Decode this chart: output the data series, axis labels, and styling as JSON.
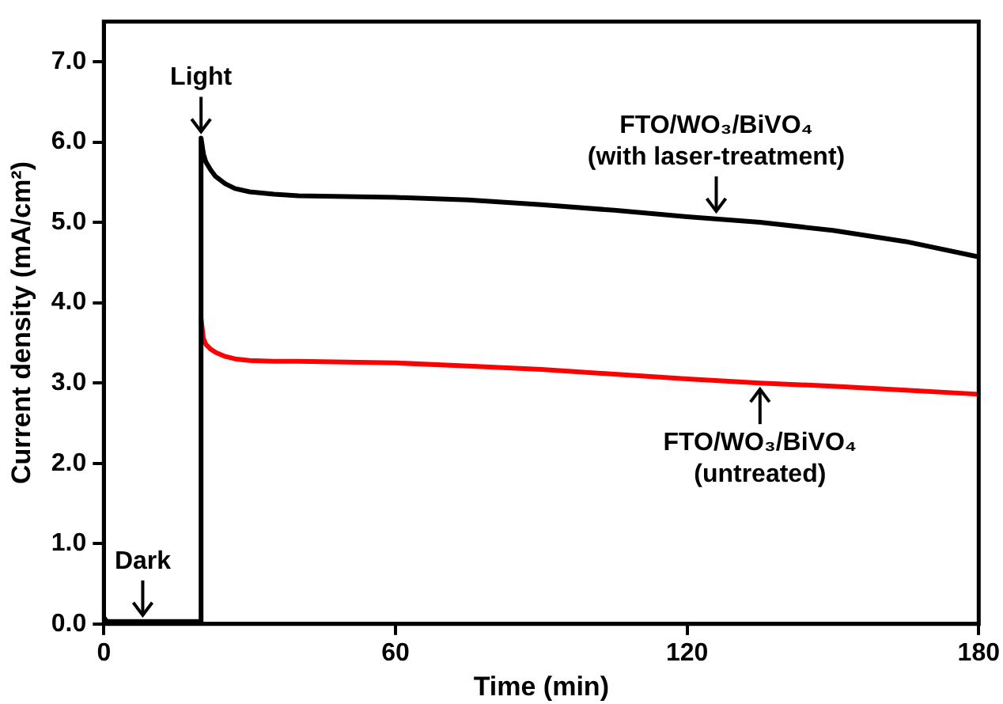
{
  "chart_data": {
    "type": "line",
    "xlabel": "Time (min)",
    "ylabel": "Current density (mA/cm²)",
    "xlim": [
      0,
      180
    ],
    "ylim": [
      0,
      7.5
    ],
    "xticks": [
      0,
      60,
      120,
      180
    ],
    "yticks": [
      {
        "value": 0,
        "label": "0.0"
      },
      {
        "value": 1,
        "label": "1.0"
      },
      {
        "value": 2,
        "label": "2.0"
      },
      {
        "value": 3,
        "label": "3.0"
      },
      {
        "value": 4,
        "label": "4.0"
      },
      {
        "value": 5,
        "label": "5.0"
      },
      {
        "value": 6,
        "label": "6.0"
      },
      {
        "value": 7,
        "label": "7.0"
      }
    ],
    "grid": false,
    "legend": false,
    "marker": "none",
    "line_style": "solid",
    "series": [
      {
        "color": "#000000",
        "x": [
          0,
          0.5,
          1,
          5,
          10,
          15,
          20,
          20,
          20.5,
          21,
          22,
          23,
          25,
          27,
          30,
          35,
          40,
          50,
          60,
          75,
          90,
          105,
          120,
          135,
          150,
          165,
          180
        ],
        "values": [
          0.08,
          0.04,
          0.03,
          0.03,
          0.03,
          0.03,
          0.03,
          6.05,
          5.85,
          5.75,
          5.65,
          5.57,
          5.48,
          5.42,
          5.38,
          5.35,
          5.33,
          5.32,
          5.31,
          5.28,
          5.22,
          5.15,
          5.07,
          5.0,
          4.9,
          4.76,
          4.57
        ]
      },
      {
        "color": "#ff0000",
        "x": [
          20,
          20.5,
          21,
          22,
          23,
          25,
          27,
          30,
          35,
          40,
          50,
          60,
          75,
          90,
          105,
          120,
          135,
          150,
          165,
          180
        ],
        "values": [
          3.8,
          3.55,
          3.48,
          3.42,
          3.38,
          3.33,
          3.3,
          3.28,
          3.27,
          3.27,
          3.26,
          3.25,
          3.21,
          3.17,
          3.11,
          3.05,
          3.0,
          2.96,
          2.91,
          2.86
        ]
      }
    ],
    "annotations": [
      {
        "text": "Light",
        "x": 20,
        "y": 6.05
      },
      {
        "text": "Dark",
        "x": 8,
        "y": 0.03
      },
      {
        "text": "FTO/WO₃/BiVO₄ (with laser-treatment)",
        "x": 126,
        "y": 5.06
      },
      {
        "text": "FTO/WO₃/BiVO₄ (untreated)",
        "x": 135,
        "y": 3.0
      }
    ]
  }
}
